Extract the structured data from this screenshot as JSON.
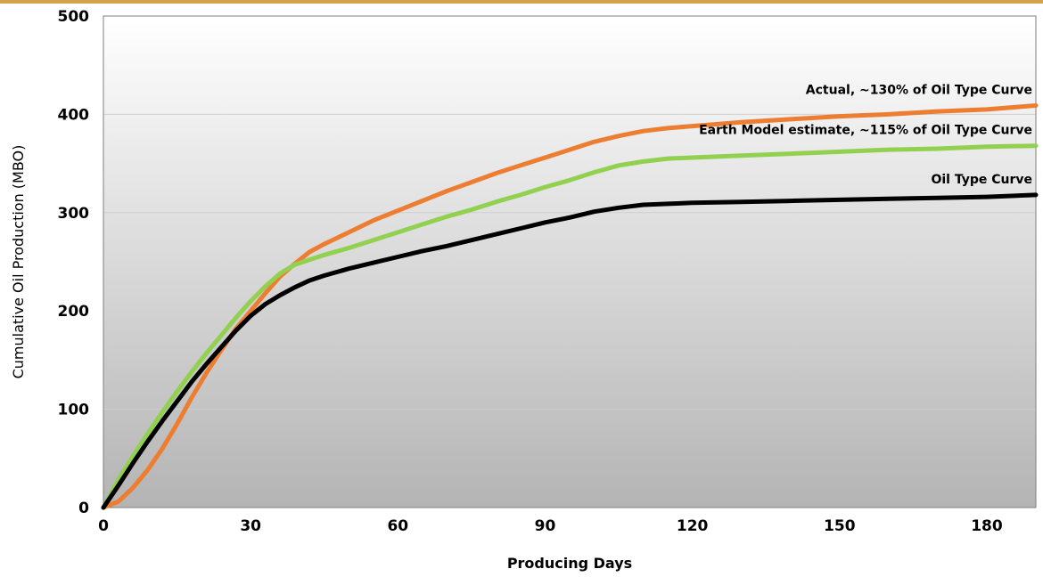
{
  "chart_data": {
    "type": "line",
    "title": "",
    "xlabel": "Producing Days",
    "ylabel": "Cumulative Oil Production (MBO)",
    "xlim": [
      0,
      190
    ],
    "ylim": [
      0,
      500
    ],
    "xticks": [
      0,
      30,
      60,
      90,
      120,
      150,
      180
    ],
    "yticks": [
      0,
      100,
      200,
      300,
      400,
      500
    ],
    "grid": true,
    "legend": "none",
    "series": [
      {
        "name": "Actual, ~130% of Oil Type Curve",
        "color": "#ed7d31",
        "x": [
          0,
          3,
          6,
          9,
          12,
          15,
          18,
          21,
          24,
          27,
          30,
          33,
          36,
          39,
          42,
          45,
          50,
          55,
          60,
          65,
          70,
          75,
          80,
          85,
          90,
          95,
          100,
          105,
          110,
          115,
          120,
          130,
          140,
          150,
          160,
          170,
          180,
          190
        ],
        "y": [
          0,
          6,
          20,
          38,
          60,
          85,
          112,
          137,
          160,
          182,
          200,
          218,
          235,
          248,
          260,
          268,
          280,
          292,
          302,
          312,
          322,
          331,
          340,
          348,
          356,
          364,
          372,
          378,
          383,
          386,
          388,
          392,
          395,
          398,
          400,
          403,
          405,
          409
        ]
      },
      {
        "name": "Earth Model estimate, ~115% of Oil Type Curve",
        "color": "#92d050",
        "x": [
          0,
          3,
          6,
          9,
          12,
          15,
          18,
          21,
          24,
          27,
          30,
          33,
          36,
          39,
          42,
          45,
          50,
          55,
          60,
          65,
          70,
          75,
          80,
          85,
          90,
          95,
          100,
          105,
          110,
          115,
          120,
          130,
          140,
          150,
          160,
          170,
          180,
          190
        ],
        "y": [
          0,
          28,
          52,
          75,
          97,
          118,
          138,
          157,
          175,
          193,
          210,
          225,
          238,
          247,
          252,
          257,
          264,
          272,
          280,
          288,
          296,
          303,
          311,
          318,
          326,
          333,
          341,
          348,
          352,
          355,
          356,
          358,
          360,
          362,
          364,
          365,
          367,
          368
        ]
      },
      {
        "name": "Oil Type Curve",
        "color": "#000000",
        "x": [
          0,
          3,
          6,
          9,
          12,
          15,
          18,
          21,
          24,
          27,
          30,
          33,
          36,
          39,
          42,
          45,
          50,
          55,
          60,
          65,
          70,
          75,
          80,
          85,
          90,
          95,
          100,
          105,
          110,
          115,
          120,
          130,
          140,
          150,
          160,
          170,
          180,
          190
        ],
        "y": [
          0,
          22,
          45,
          67,
          88,
          108,
          128,
          146,
          163,
          180,
          195,
          207,
          216,
          224,
          231,
          236,
          243,
          249,
          255,
          261,
          266,
          272,
          278,
          284,
          290,
          295,
          301,
          305,
          308,
          309,
          310,
          311,
          312,
          313,
          314,
          315,
          316,
          318
        ]
      }
    ]
  },
  "style": {
    "top_rule_color": "#d4a24a",
    "plot_bg_top": "#ffffff",
    "plot_bg_bottom": "#b4b4b4",
    "gridline_color": "#d0d0d0",
    "frame_color": "#7f7f7f"
  }
}
